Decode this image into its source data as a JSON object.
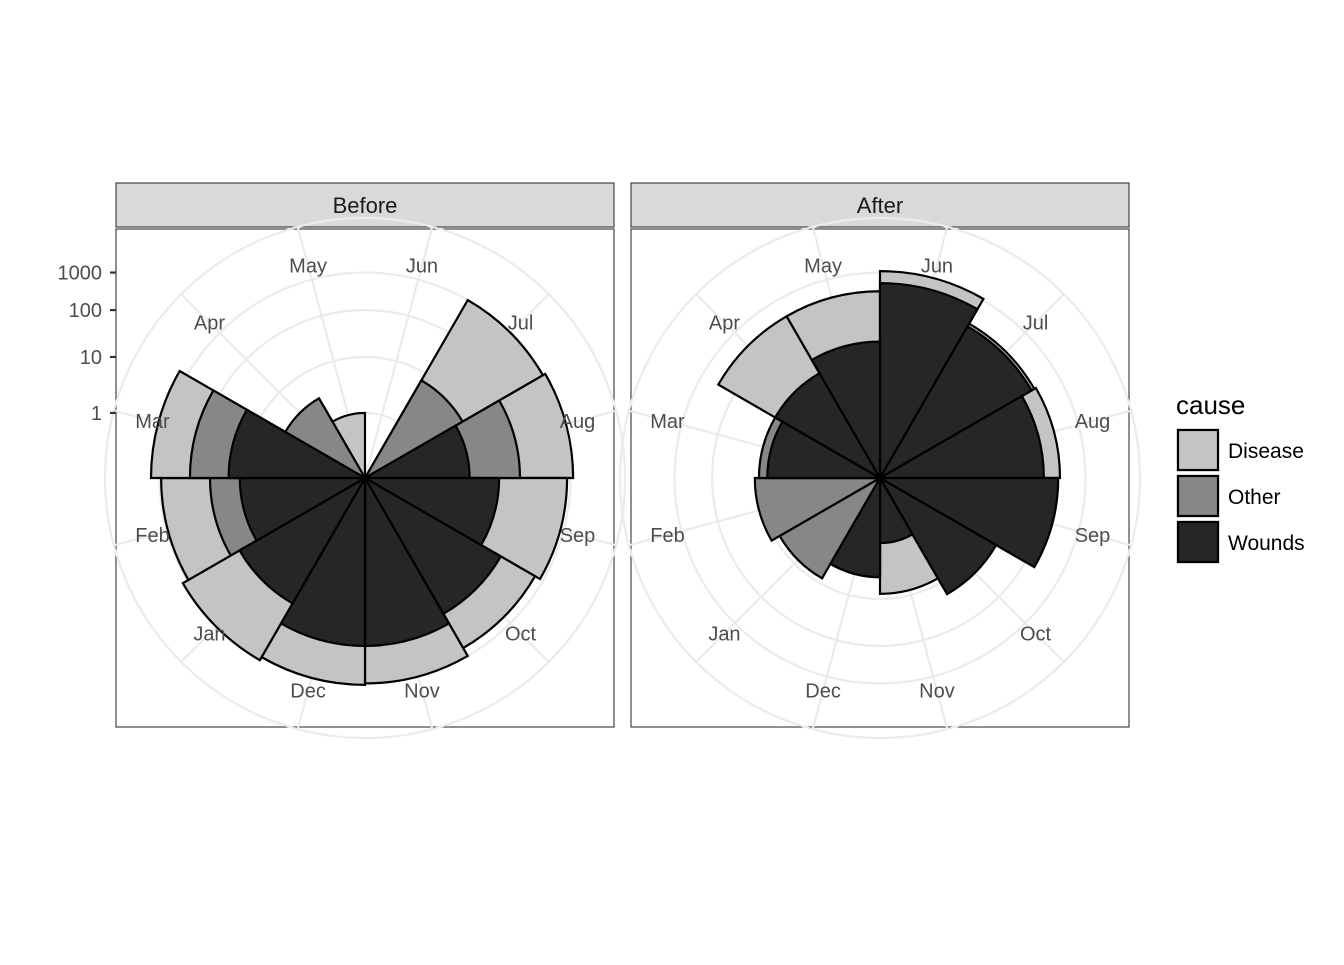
{
  "chart_data": {
    "type": "coxcomb",
    "scale": "sqrt of log10(x+1)",
    "y_ticks": [
      1,
      10,
      100,
      1000
    ],
    "y_tick_labels": [
      "1",
      "10",
      "100",
      "1000"
    ],
    "months": [
      "Jun",
      "Jul",
      "Aug",
      "Sep",
      "Oct",
      "Nov",
      "Dec",
      "Jan",
      "Feb",
      "Mar",
      "Apr",
      "May"
    ],
    "layer_order": [
      "Disease",
      "Other",
      "Wounds"
    ],
    "colors": {
      "Disease": "#c4c4c4",
      "Other": "#878787",
      "Wounds": "#262626"
    },
    "panels": [
      {
        "title": "Before",
        "series": [
          {
            "name": "Disease",
            "values": [
              null,
              1000,
              1200,
              800,
              550,
              1000,
              1100,
              1400,
              900,
              1800,
              2,
              1
            ]
          },
          {
            "name": "Other",
            "values": [
              null,
              7,
              50,
              7,
              5,
              10,
              20,
              15,
              50,
              150,
              3,
              0
            ]
          },
          {
            "name": "Wounds",
            "values": [
              null,
              0,
              5,
              18,
              55,
              100,
              100,
              30,
              12,
              20,
              0,
              0
            ]
          }
        ]
      },
      {
        "title": "After",
        "series": [
          {
            "name": "Disease",
            "values": [
              1100,
              180,
              200,
              100,
              12,
              8,
              4,
              0,
              0,
              0,
              300,
              300
            ]
          },
          {
            "name": "Other",
            "values": [
              0,
              0,
              0,
              0,
              5,
              1,
              3,
              8,
              12,
              10,
              6,
              6
            ]
          },
          {
            "name": "Wounds",
            "values": [
              500,
              150,
              80,
              180,
              18,
              1,
              4,
              0,
              0,
              7,
              10,
              20
            ]
          }
        ]
      }
    ],
    "legend": {
      "title": "cause",
      "entries": [
        "Disease",
        "Other",
        "Wounds"
      ],
      "position": "right"
    }
  }
}
